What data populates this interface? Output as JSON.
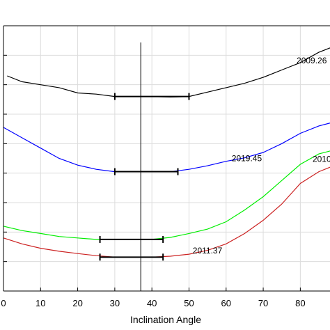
{
  "chart_data": {
    "type": "line",
    "title": "",
    "xlabel": "Inclination Angle",
    "ylabel": "",
    "xlim": [
      0,
      88
    ],
    "ylim": [
      0,
      9
    ],
    "grid": true,
    "x_ticks": [
      0,
      10,
      20,
      30,
      40,
      50,
      60,
      70,
      80
    ],
    "x_tick_labels": [
      "0",
      "10",
      "20",
      "30",
      "40",
      "50",
      "60",
      "70",
      "80"
    ],
    "y_ticks": [
      1,
      2,
      3,
      4,
      5,
      6,
      7,
      8
    ],
    "reference_line": {
      "x": 37
    },
    "series": [
      {
        "name": "2009.26",
        "color": "#000000",
        "x": [
          1,
          5,
          10,
          15,
          20,
          25,
          30,
          35,
          40,
          45,
          50,
          55,
          60,
          65,
          70,
          75,
          80,
          85,
          88
        ],
        "y": [
          7.3,
          7.1,
          7.0,
          6.9,
          6.72,
          6.68,
          6.6,
          6.6,
          6.6,
          6.58,
          6.6,
          6.75,
          6.9,
          7.05,
          7.25,
          7.5,
          7.75,
          8.1,
          8.25
        ],
        "error_bar": {
          "x_low": 30,
          "x_high": 50,
          "y": 6.6
        }
      },
      {
        "name": "2019.45",
        "color": "#0000ff",
        "x": [
          0,
          5,
          10,
          15,
          20,
          25,
          30,
          35,
          40,
          45,
          50,
          55,
          60,
          65,
          70,
          75,
          80,
          85,
          88
        ],
        "y": [
          5.55,
          5.2,
          4.85,
          4.5,
          4.27,
          4.13,
          4.05,
          4.05,
          4.05,
          4.05,
          4.13,
          4.25,
          4.4,
          4.52,
          4.7,
          5.0,
          5.35,
          5.6,
          5.7
        ],
        "error_bar": {
          "x_low": 30,
          "x_high": 47,
          "y": 4.05
        }
      },
      {
        "name": "2010",
        "color": "#00ee00",
        "x": [
          0,
          5,
          10,
          15,
          20,
          25,
          30,
          35,
          40,
          45,
          50,
          55,
          60,
          65,
          70,
          75,
          80,
          85,
          88
        ],
        "y": [
          2.2,
          2.05,
          1.95,
          1.85,
          1.8,
          1.75,
          1.75,
          1.75,
          1.75,
          1.82,
          1.95,
          2.1,
          2.35,
          2.75,
          3.2,
          3.75,
          4.3,
          4.65,
          4.75
        ],
        "error_bar": {
          "x_low": 26,
          "x_high": 43,
          "y": 1.75
        }
      },
      {
        "name": "2011.37",
        "color": "#cc2222",
        "x": [
          0,
          5,
          10,
          15,
          20,
          25,
          30,
          35,
          40,
          45,
          50,
          55,
          60,
          65,
          70,
          75,
          80,
          85,
          88
        ],
        "y": [
          1.8,
          1.6,
          1.45,
          1.35,
          1.27,
          1.2,
          1.15,
          1.15,
          1.15,
          1.18,
          1.25,
          1.38,
          1.6,
          1.95,
          2.4,
          2.95,
          3.65,
          4.05,
          4.2
        ],
        "error_bar": {
          "x_low": 26,
          "x_high": 43,
          "y": 1.15
        }
      }
    ],
    "annotations": [
      {
        "text": "2009.26",
        "x": 79,
        "y": 7.72
      },
      {
        "text": "2019.45",
        "x": 61.5,
        "y": 4.4
      },
      {
        "text": "2010",
        "x": 83.3,
        "y": 4.38
      },
      {
        "text": "2011.37",
        "x": 51,
        "y": 1.28
      }
    ]
  }
}
